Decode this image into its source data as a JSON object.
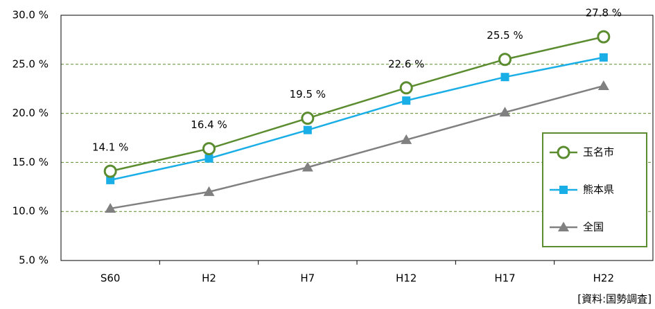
{
  "chart_data": {
    "type": "line",
    "categories": [
      "S60",
      "H2",
      "H7",
      "H12",
      "H17",
      "H22"
    ],
    "series": [
      {
        "name": "玉名市",
        "color": "#5b8c2f",
        "marker": "circle",
        "values": [
          14.1,
          16.4,
          19.5,
          22.6,
          25.5,
          27.8
        ],
        "value_labels": [
          "14.1 %",
          "16.4 %",
          "19.5 %",
          "22.6 %",
          "25.5 %",
          "27.8 %"
        ]
      },
      {
        "name": "熊本県",
        "color": "#1aaee6",
        "marker": "square",
        "values": [
          13.2,
          15.4,
          18.3,
          21.3,
          23.7,
          25.7
        ]
      },
      {
        "name": "全国",
        "color": "#808080",
        "marker": "triangle",
        "values": [
          10.3,
          12.0,
          14.5,
          17.3,
          20.1,
          22.8
        ]
      }
    ],
    "ylim": [
      5,
      30
    ],
    "yticks": [
      {
        "value": 5,
        "label": "5.0 %"
      },
      {
        "value": 10,
        "label": "10.0 %"
      },
      {
        "value": 15,
        "label": "15.0 %"
      },
      {
        "value": 20,
        "label": "20.0 %"
      },
      {
        "value": 25,
        "label": "25.0 %"
      },
      {
        "value": 30,
        "label": "30.0 %"
      }
    ],
    "grid": true,
    "legend": "right",
    "source": "[資料:国勢調査]"
  }
}
